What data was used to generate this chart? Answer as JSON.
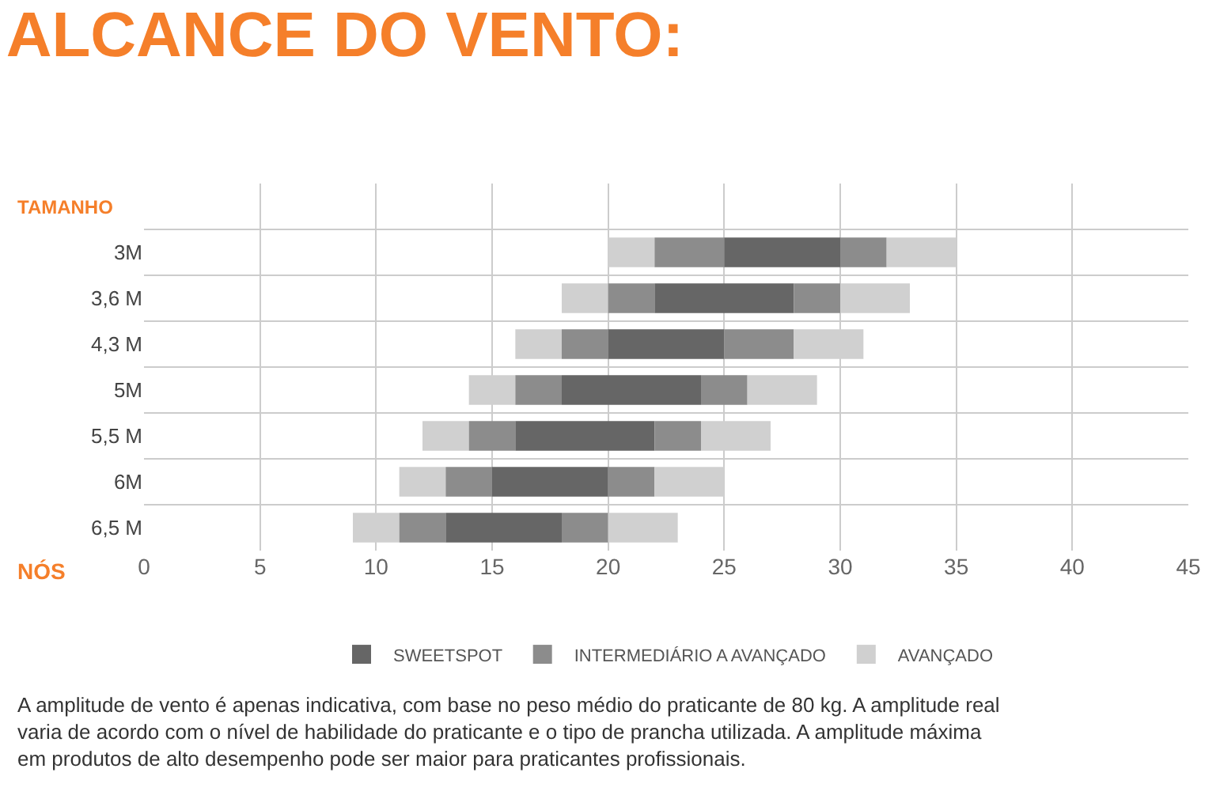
{
  "chart_data": {
    "type": "bar",
    "orientation": "horizontal",
    "title": "ALCANCE DO VENTO:",
    "ylabel": "TAMANHO",
    "xlabel": "NÓS",
    "categories": [
      "3M",
      "3,6 M",
      "4,3 M",
      "5M",
      "5,5 M",
      "6M",
      "6,5 M"
    ],
    "series": [
      {
        "color": "#d0d0d0",
        "base": [
          20,
          18,
          16,
          14,
          12,
          11,
          9
        ],
        "values": [
          2,
          2,
          2,
          2,
          2,
          2,
          2
        ]
      },
      {
        "color": "#8c8c8c",
        "base": [
          22,
          20,
          18,
          16,
          14,
          13,
          11
        ],
        "values": [
          3,
          2,
          2,
          2,
          2,
          2,
          2
        ]
      },
      {
        "name": "SWEETSPOT",
        "color": "#666666",
        "base": [
          25,
          22,
          20,
          18,
          16,
          15,
          13
        ],
        "values": [
          5,
          6,
          5,
          6,
          6,
          5,
          5
        ]
      },
      {
        "name": "INTERMEDIÁRIO A AVANÇADO",
        "color": "#8c8c8c",
        "base": [
          30,
          28,
          25,
          24,
          22,
          20,
          18
        ],
        "values": [
          2,
          2,
          3,
          2,
          2,
          2,
          2
        ]
      },
      {
        "name": "AVANÇADO",
        "color": "#d0d0d0",
        "base": [
          32,
          30,
          28,
          26,
          24,
          22,
          20
        ],
        "values": [
          3,
          3,
          3,
          3,
          3,
          3,
          3
        ]
      }
    ],
    "xlim": [
      0,
      45
    ],
    "xticks": [
      0,
      5,
      10,
      15,
      20,
      25,
      30,
      35,
      40,
      45
    ],
    "grid": true,
    "legend": "bottom",
    "annotations": [
      "A amplitude de vento é apenas indicativa, com base no peso médio do praticante de 80 kg. A amplitude real varia de acordo com o nível de habilidade do praticante e o tipo de prancha utilizada. A amplitude máxima em produtos de alto desempenho pode ser maior para praticantes profissionais."
    ]
  }
}
